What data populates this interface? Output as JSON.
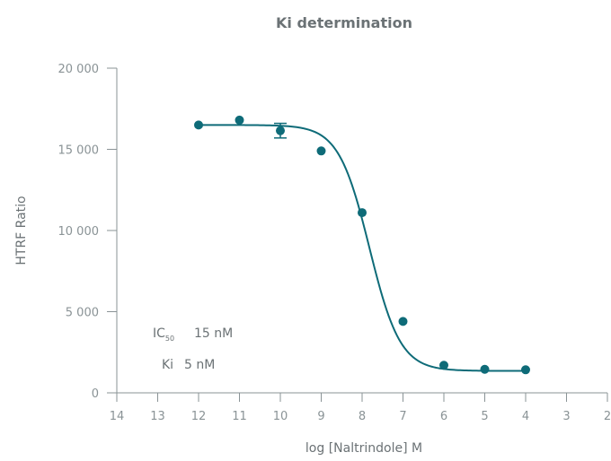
{
  "chart_data": {
    "type": "scatter",
    "title": "Ki determination",
    "xlabel": "log [Naltrindole] M",
    "ylabel": "HTRF Ratio",
    "xlim": [
      14,
      2
    ],
    "ylim": [
      0,
      20000
    ],
    "x_ticks": [
      "14",
      "13",
      "12",
      "11",
      "10",
      "9",
      "8",
      "7",
      "6",
      "5",
      "4",
      "3",
      "2"
    ],
    "y_ticks": [
      "0",
      "5 000",
      "10 000",
      "15 000",
      "20 000"
    ],
    "grid": false,
    "color": "#0e6b78",
    "series": [
      {
        "points": [
          {
            "x": 12,
            "y": 16500
          },
          {
            "x": 11,
            "y": 16800
          },
          {
            "x": 10,
            "y": 16150,
            "err": 450
          },
          {
            "x": 9,
            "y": 14900
          },
          {
            "x": 8,
            "y": 11100
          },
          {
            "x": 7,
            "y": 4400
          },
          {
            "x": 6,
            "y": 1700
          },
          {
            "x": 5,
            "y": 1450
          },
          {
            "x": 4,
            "y": 1420
          }
        ]
      }
    ],
    "fit": {
      "top": 16500,
      "bottom": 1350,
      "logIC50": 7.82,
      "hill": 1.15,
      "x_range": [
        12,
        4
      ]
    },
    "annotations": {
      "ic50_label": "IC",
      "ic50_sub": "50",
      "ic50_value": "15 nM",
      "ki_label": "Ki",
      "ki_value": "5 nM"
    }
  }
}
